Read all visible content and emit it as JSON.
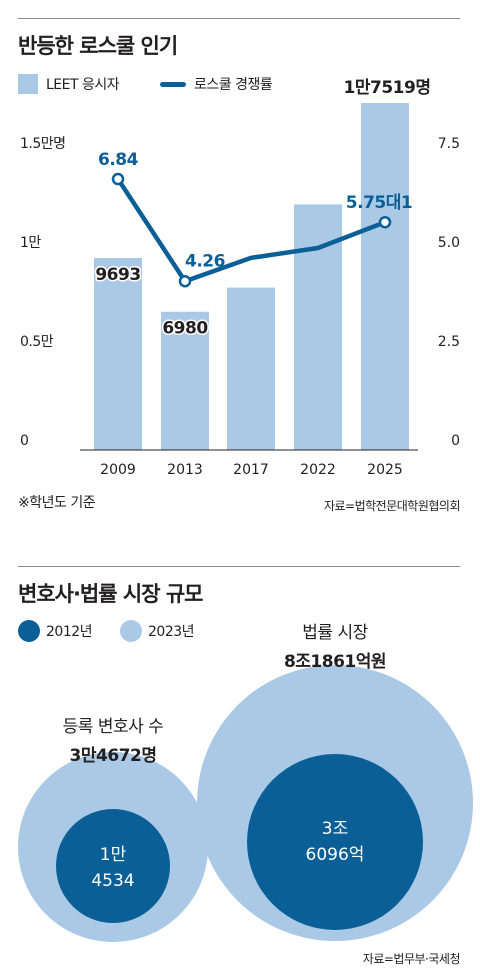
{
  "chart_data": [
    {
      "type": "bar+line",
      "title": "반등한 로스쿨 인기",
      "categories": [
        "2009",
        "2013",
        "2017",
        "2022",
        "2025"
      ],
      "series": [
        {
          "name": "LEET 응시자",
          "type": "bar",
          "axis": "left",
          "values": [
            9693,
            6980,
            8200,
            12400,
            17519
          ],
          "labels": [
            "9693",
            "6980",
            "",
            "",
            "1만7519명"
          ]
        },
        {
          "name": "로스쿨 경쟁률",
          "type": "line",
          "axis": "right",
          "values": [
            6.84,
            4.26,
            4.85,
            5.1,
            5.75
          ],
          "labels": [
            "6.84",
            "4.26",
            "",
            "",
            "5.75대1"
          ],
          "marked_points": [
            0,
            1,
            4
          ]
        }
      ],
      "left_axis": {
        "ylim": [
          0,
          17519
        ],
        "ticks": [
          0,
          5000,
          10000,
          15000
        ],
        "tick_labels": [
          "0",
          "0.5만",
          "1만",
          "1.5만명"
        ]
      },
      "right_axis": {
        "ylim": [
          0,
          8.76
        ],
        "ticks": [
          0,
          2.5,
          5.0,
          7.5
        ],
        "tick_labels": [
          "0",
          "2.5",
          "5.0",
          "7.5"
        ]
      },
      "note": "※학년도 기준",
      "source": "자료=법학전문대학원협의회",
      "colors": {
        "bar": "#a9c9e6",
        "line": "#0a5f97",
        "label_bg": "#ffffff"
      }
    },
    {
      "type": "bubble",
      "title": "변호사·법률 시장 규모",
      "legend": [
        "2012년",
        "2023년"
      ],
      "groups": [
        {
          "name": "등록 변호사 수",
          "label_2023": "3만4672명",
          "label_2012": [
            "1만",
            "4534"
          ],
          "value_2012": 14534,
          "value_2023": 34672
        },
        {
          "name": "법률 시장",
          "label_2023": "8조1861억원",
          "label_2012": [
            "3조",
            "6096억"
          ],
          "value_2012": 36096,
          "value_2023": 81861
        }
      ],
      "source": "자료=법무부·국세청",
      "colors": {
        "2012": "#0a5f97",
        "2023": "#a9c9e6"
      }
    }
  ]
}
